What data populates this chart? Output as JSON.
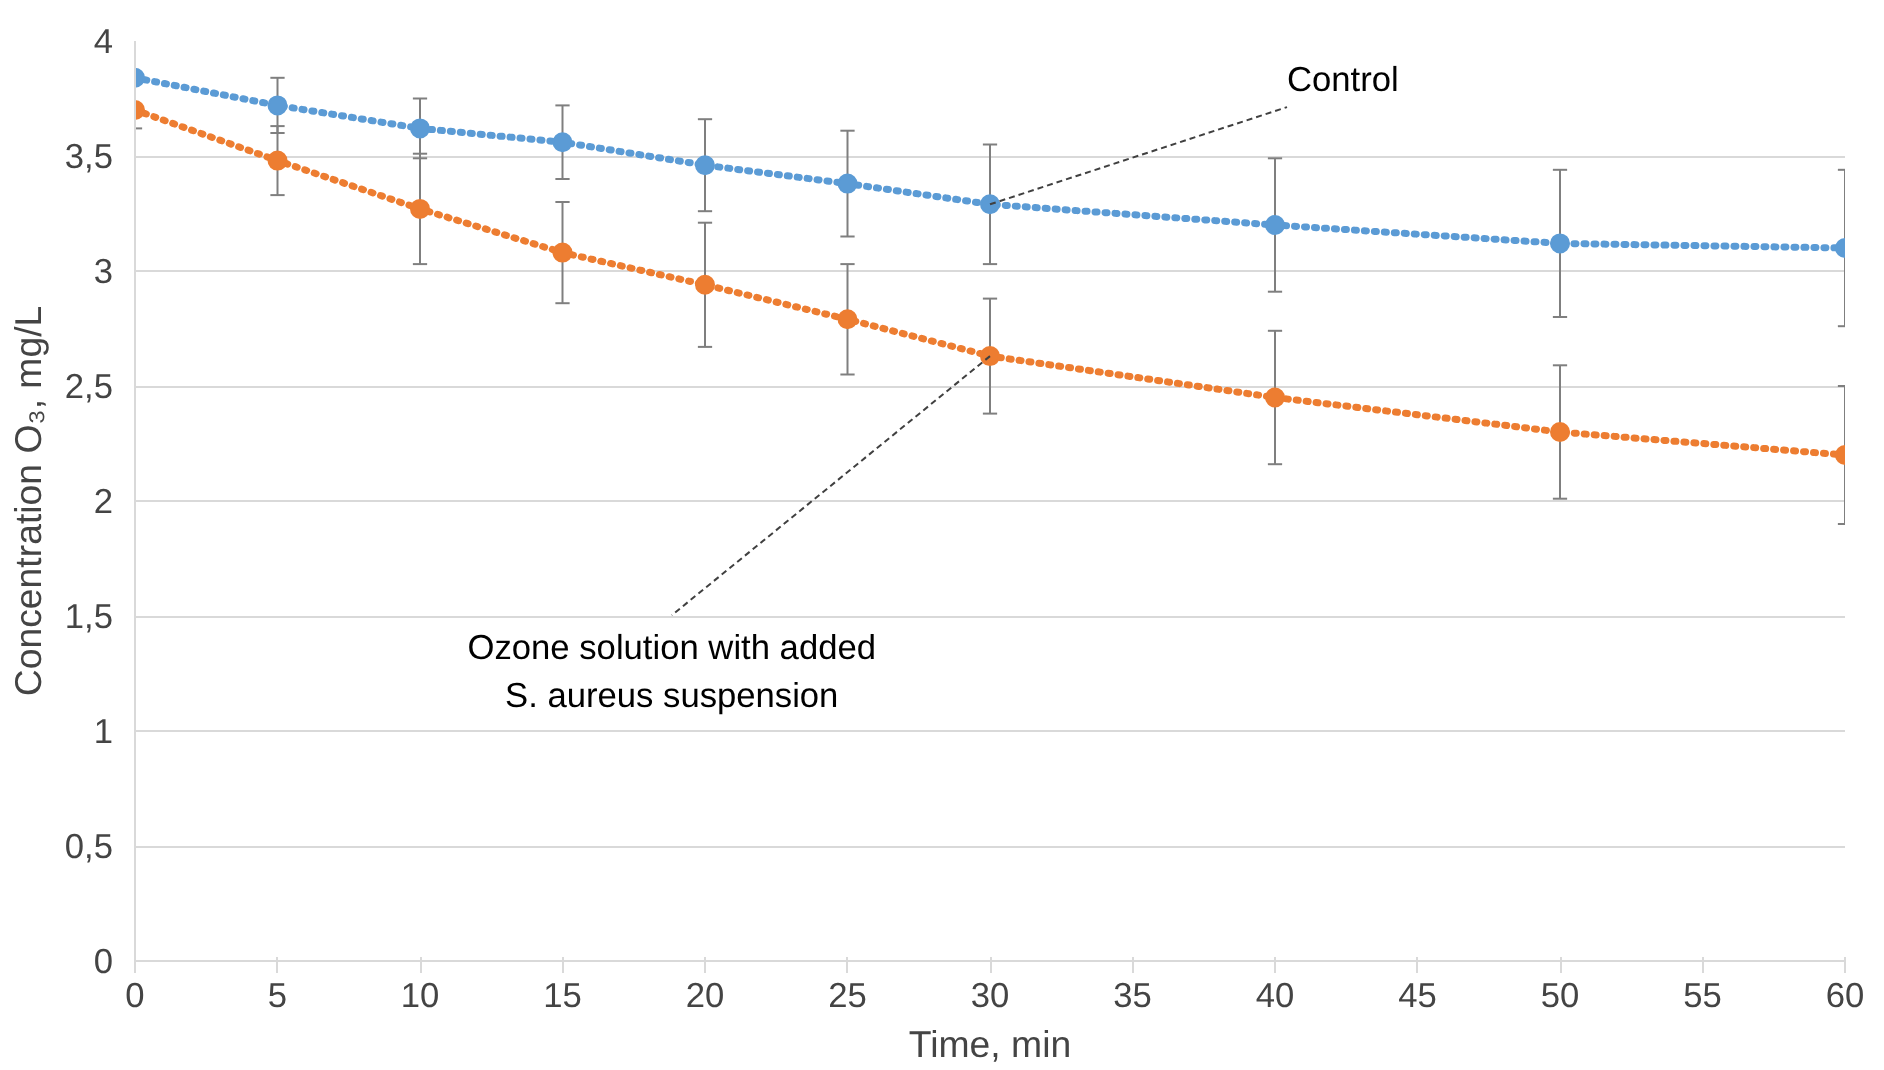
{
  "chart_data": {
    "type": "line",
    "xlabel": "Time, min",
    "ylabel": "Concentration O₃, mg/L",
    "x": [
      0,
      5,
      10,
      15,
      20,
      25,
      30,
      40,
      50,
      60
    ],
    "series": [
      {
        "color": "#5b9bd5",
        "values": [
          3.84,
          3.72,
          3.62,
          3.56,
          3.46,
          3.38,
          3.29,
          3.2,
          3.12,
          3.1
        ],
        "errors": [
          0.22,
          0.12,
          0.13,
          0.16,
          0.2,
          0.23,
          0.26,
          0.29,
          0.32,
          0.34
        ]
      },
      {
        "color": "#ed7d31",
        "values": [
          3.7,
          3.48,
          3.27,
          3.08,
          2.94,
          2.79,
          2.63,
          2.45,
          2.3,
          2.2
        ],
        "errors": [
          null,
          0.15,
          0.24,
          0.22,
          0.27,
          0.24,
          0.25,
          0.29,
          0.29,
          0.3
        ]
      }
    ],
    "annotations": [
      {
        "text": "Control",
        "x": 30,
        "y": 3.29
      },
      {
        "text": "Ozone solution with added\nS. aureus suspension",
        "x": 30,
        "y": 2.63
      }
    ],
    "xlim": [
      0,
      60
    ],
    "xticks": [
      0,
      5,
      10,
      15,
      20,
      25,
      30,
      35,
      40,
      45,
      50,
      55,
      60
    ],
    "ylim": [
      0,
      4
    ],
    "yticks": [
      {
        "value": 0,
        "label": "0"
      },
      {
        "value": 0.5,
        "label": "0,5"
      },
      {
        "value": 1,
        "label": "1"
      },
      {
        "value": 1.5,
        "label": "1,5"
      },
      {
        "value": 2,
        "label": "2"
      },
      {
        "value": 2.5,
        "label": "2,5"
      },
      {
        "value": 3,
        "label": "3"
      },
      {
        "value": 3.5,
        "label": "3,5"
      },
      {
        "value": 4,
        "label": "4"
      }
    ],
    "grid": "y",
    "marker": "circle",
    "line_style": "dotted"
  }
}
